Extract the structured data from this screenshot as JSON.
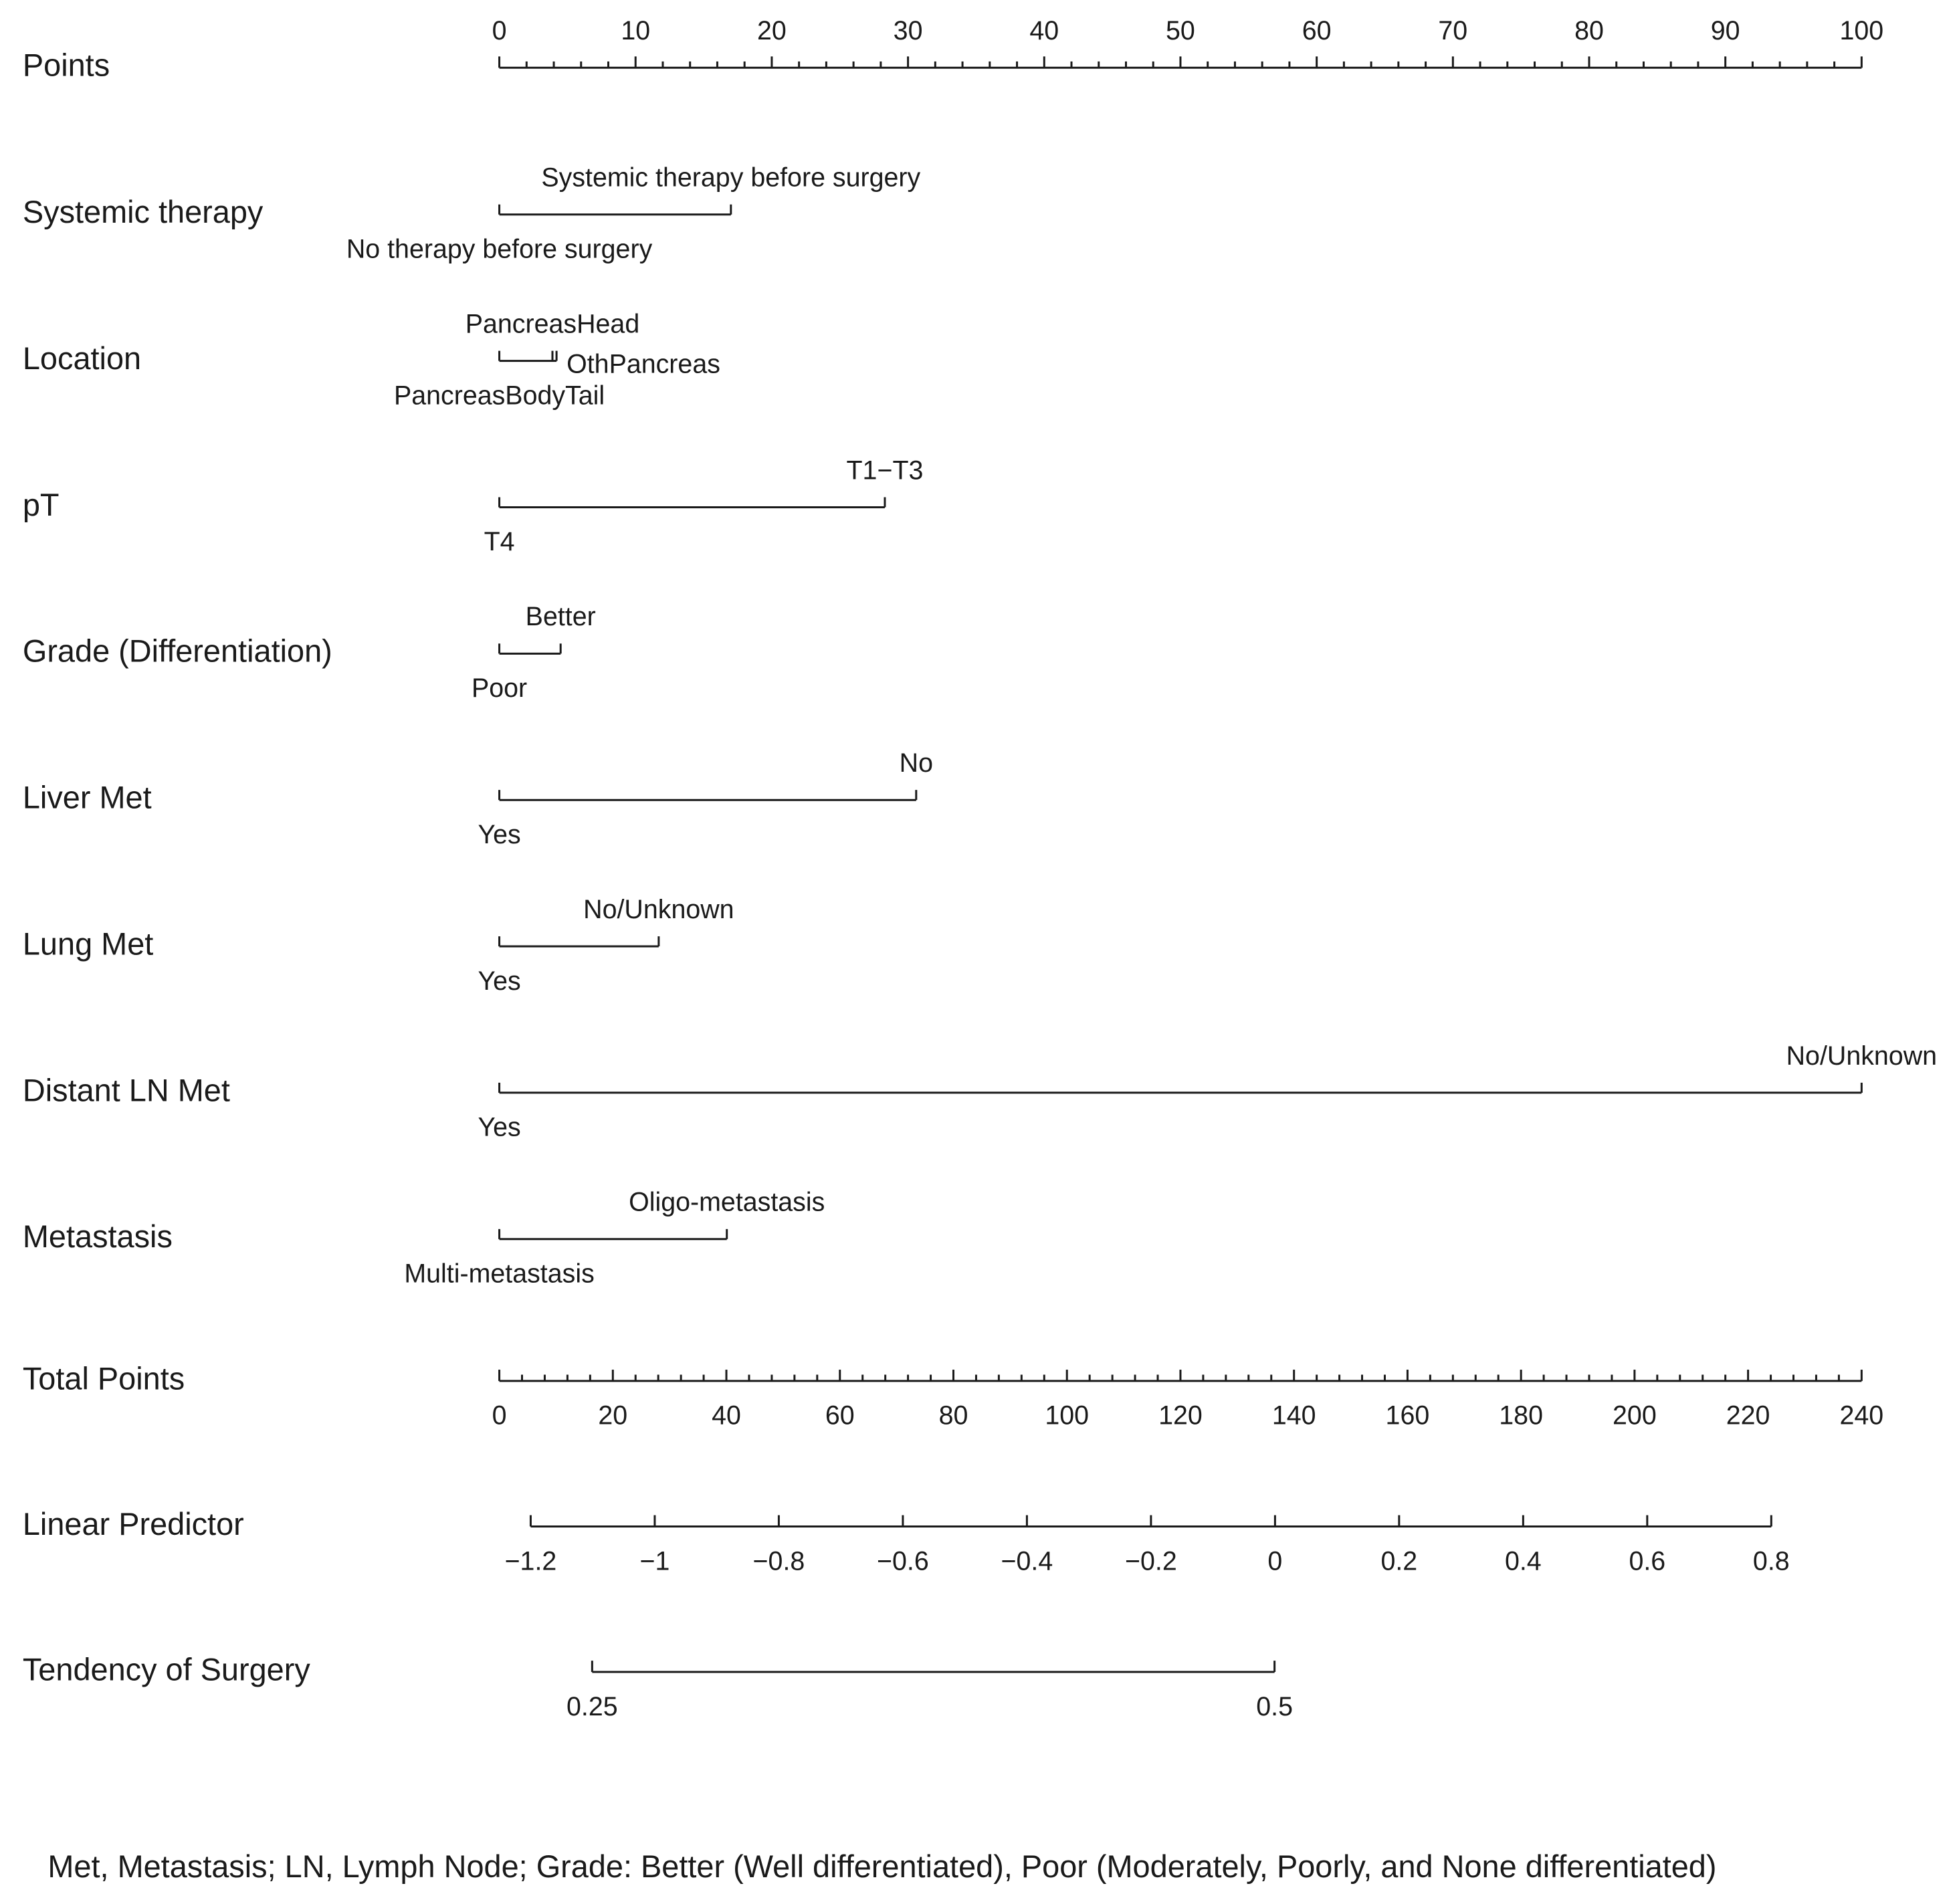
{
  "chart_data": {
    "type": "nomogram",
    "points": {
      "name": "Points",
      "xlim": [
        0,
        100
      ],
      "xticks": [
        0,
        10,
        20,
        30,
        40,
        50,
        60,
        70,
        80,
        90,
        100
      ],
      "minor_xticks": [
        2,
        4,
        6,
        8,
        12,
        14,
        16,
        18,
        22,
        24,
        26,
        28,
        32,
        34,
        36,
        38,
        42,
        44,
        46,
        48,
        52,
        54,
        56,
        58,
        62,
        64,
        66,
        68,
        72,
        74,
        76,
        78,
        82,
        84,
        86,
        88,
        92,
        94,
        96,
        98
      ]
    },
    "variables": [
      {
        "name": "Systemic therapy",
        "levels": [
          {
            "label": "No therapy before surgery",
            "points": 0
          },
          {
            "label": "Systemic therapy before surgery",
            "points": 17
          }
        ]
      },
      {
        "name": "Location",
        "levels": [
          {
            "label": "PancreasBodyTail",
            "points": 0
          },
          {
            "label": "PancreasHead",
            "points": 3.9
          },
          {
            "label": "OthPancreas",
            "points": 4.2
          }
        ]
      },
      {
        "name": "pT",
        "levels": [
          {
            "label": "T4",
            "points": 0
          },
          {
            "label": "T1−T3",
            "points": 28.3
          }
        ]
      },
      {
        "name": "Grade (Differentiation)",
        "levels": [
          {
            "label": "Poor",
            "points": 0
          },
          {
            "label": "Better",
            "points": 4.5
          }
        ]
      },
      {
        "name": "Liver Met",
        "levels": [
          {
            "label": "Yes",
            "points": 0
          },
          {
            "label": "No",
            "points": 30.6
          }
        ]
      },
      {
        "name": "Lung Met",
        "levels": [
          {
            "label": "Yes",
            "points": 0
          },
          {
            "label": "No/Unknown",
            "points": 11.7
          }
        ]
      },
      {
        "name": "Distant LN Met",
        "levels": [
          {
            "label": "Yes",
            "points": 0
          },
          {
            "label": "No/Unknown",
            "points": 100
          }
        ]
      },
      {
        "name": "Metastasis",
        "levels": [
          {
            "label": "Multi-metastasis",
            "points": 0
          },
          {
            "label": "Oligo-metastasis",
            "points": 16.7
          }
        ]
      }
    ],
    "total_points": {
      "name": "Total Points",
      "xlim": [
        0,
        240
      ],
      "xticks": [
        0,
        20,
        40,
        60,
        80,
        100,
        120,
        140,
        160,
        180,
        200,
        220,
        240
      ],
      "minor_xticks": [
        4,
        8,
        12,
        16,
        24,
        28,
        32,
        36,
        44,
        48,
        52,
        56,
        64,
        68,
        72,
        76,
        84,
        88,
        92,
        96,
        104,
        108,
        112,
        116,
        124,
        128,
        132,
        136,
        144,
        148,
        152,
        156,
        164,
        168,
        172,
        176,
        184,
        188,
        192,
        196,
        204,
        208,
        212,
        216,
        224,
        228,
        232,
        236
      ]
    },
    "linear_predictor": {
      "name": "Linear Predictor",
      "xlim": [
        -1.2,
        0.8
      ],
      "xticks": [
        {
          "value": -1.2,
          "label": "−1.2"
        },
        {
          "value": -1,
          "label": "−1"
        },
        {
          "value": -0.8,
          "label": "−0.8"
        },
        {
          "value": -0.6,
          "label": "−0.6"
        },
        {
          "value": -0.4,
          "label": "−0.4"
        },
        {
          "value": -0.2,
          "label": "−0.2"
        },
        0,
        0.2,
        0.4,
        0.6,
        0.8
      ]
    },
    "probability": {
      "name": "Tendency of Surgery",
      "xlim": [
        0.25,
        0.5
      ],
      "xticks": [
        0.25,
        0.5
      ]
    },
    "footnote": "Met, Metastasis; LN, Lymph Node; Grade: Better (Well differentiated), Poor (Moderately, Poorly, and None differentiated)"
  }
}
